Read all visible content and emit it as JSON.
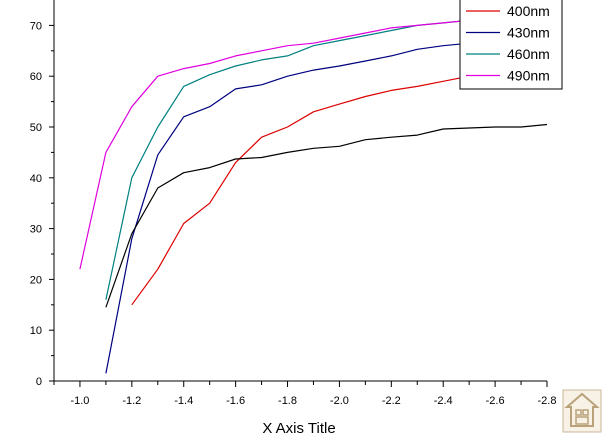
{
  "chart_data": {
    "type": "line",
    "xlabel": "X Axis Title",
    "ylabel": "",
    "xlim": [
      -0.9,
      -2.8
    ],
    "ylim": [
      0,
      75
    ],
    "x_ticks": [
      -1.0,
      -1.2,
      -1.4,
      -1.6,
      -1.8,
      -2.0,
      -2.2,
      -2.4,
      -2.6,
      -2.8
    ],
    "x_tick_labels": [
      "-1.0",
      "-1.2",
      "-1.4",
      "-1.6",
      "-1.8",
      "-2.0",
      "-2.2",
      "-2.4",
      "-2.6",
      "-2.8"
    ],
    "y_ticks": [
      0,
      10,
      20,
      30,
      40,
      50,
      60,
      70
    ],
    "y_tick_labels": [
      "0",
      "10",
      "20",
      "30",
      "40",
      "50",
      "60",
      "70"
    ],
    "legend_position": "top-right",
    "grid": false,
    "series": [
      {
        "name": "400nm",
        "color": "#dd0000",
        "x": [
          -1.2,
          -1.3,
          -1.4,
          -1.5,
          -1.6,
          -1.7,
          -1.8,
          -1.9,
          -2.0,
          -2.1,
          -2.2,
          -2.3,
          -2.4,
          -2.5,
          -2.6,
          -2.7
        ],
        "y": [
          15,
          22,
          31,
          35,
          43,
          48,
          50,
          53,
          54.5,
          56,
          57.2,
          58,
          59,
          60,
          60.5,
          62
        ]
      },
      {
        "name": "430nm",
        "color": "#000080",
        "x": [
          -1.1,
          -1.2,
          -1.3,
          -1.4,
          -1.5,
          -1.6,
          -1.7,
          -1.8,
          -1.9,
          -2.0,
          -2.1,
          -2.2,
          -2.3,
          -2.4,
          -2.5,
          -2.6,
          -2.7
        ],
        "y": [
          1.5,
          28,
          44.5,
          52,
          54,
          57.5,
          58.3,
          60,
          61.2,
          62,
          63,
          64,
          65.3,
          66,
          66.5,
          67,
          68
        ]
      },
      {
        "name": "460nm",
        "color": "#008080",
        "x": [
          -1.1,
          -1.2,
          -1.3,
          -1.4,
          -1.5,
          -1.6,
          -1.7,
          -1.8,
          -1.9,
          -2.0,
          -2.1,
          -2.2,
          -2.3,
          -2.4,
          -2.5,
          -2.6
        ],
        "y": [
          16,
          40,
          50,
          58,
          60.3,
          62,
          63.2,
          64,
          66,
          67,
          68,
          69,
          70,
          70.5,
          71,
          72
        ]
      },
      {
        "name": "490nm",
        "color": "#e000e0",
        "x": [
          -1.0,
          -1.1,
          -1.2,
          -1.3,
          -1.4,
          -1.5,
          -1.6,
          -1.7,
          -1.8,
          -1.9,
          -2.0,
          -2.1,
          -2.2,
          -2.3,
          -2.4,
          -2.5,
          -2.6
        ],
        "y": [
          22,
          45,
          54,
          60,
          61.5,
          62.5,
          64,
          65,
          66,
          66.5,
          67.5,
          68.5,
          69.5,
          70,
          70.5,
          71,
          72
        ]
      },
      {
        "name": "",
        "color": "#000000",
        "x": [
          -1.1,
          -1.2,
          -1.3,
          -1.4,
          -1.5,
          -1.6,
          -1.7,
          -1.8,
          -1.9,
          -2.0,
          -2.1,
          -2.2,
          -2.3,
          -2.4,
          -2.5,
          -2.6,
          -2.7,
          -2.8
        ],
        "y": [
          14.5,
          29,
          38,
          41,
          42,
          43.7,
          44,
          45,
          45.8,
          46.2,
          47.5,
          48,
          48.4,
          49.6,
          49.8,
          50,
          50,
          50.5
        ]
      }
    ]
  },
  "icons": {
    "watermark": "house-logo-icon"
  }
}
